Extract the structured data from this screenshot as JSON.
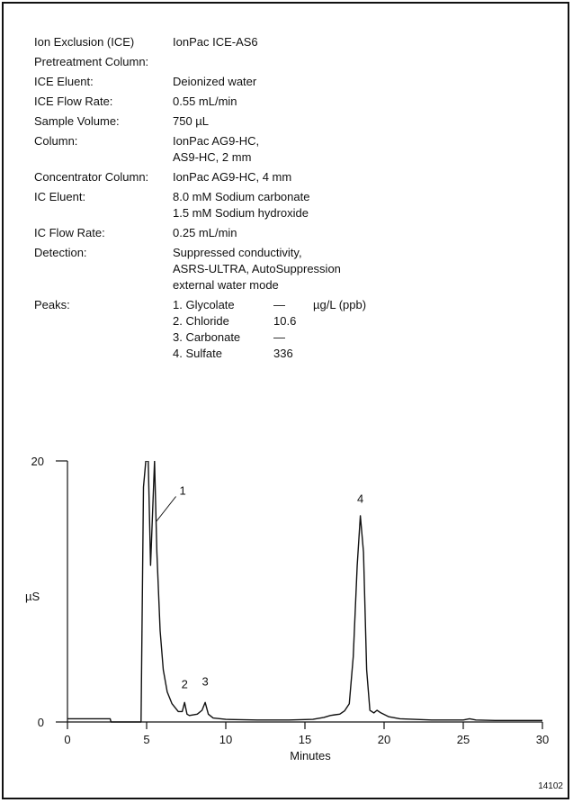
{
  "conditions": [
    {
      "label": "Ion Exclusion (ICE)",
      "value": [
        "IonPac ICE-AS6"
      ]
    },
    {
      "label": "Pretreatment Column:",
      "value": [
        ""
      ]
    },
    {
      "label": "ICE Eluent:",
      "value": [
        "Deionized water"
      ]
    },
    {
      "label": "ICE Flow Rate:",
      "value": [
        "0.55 mL/min"
      ]
    },
    {
      "label": "Sample Volume:",
      "value": [
        "750 µL"
      ]
    },
    {
      "label": "Column:",
      "value": [
        "IonPac AG9-HC,",
        "AS9-HC, 2 mm"
      ]
    },
    {
      "label": "Concentrator Column:",
      "value": [
        "IonPac AG9-HC, 4 mm"
      ]
    },
    {
      "label": "IC Eluent:",
      "value": [
        "8.0 mM Sodium carbonate",
        "1.5 mM Sodium hydroxide"
      ]
    },
    {
      "label": "IC Flow Rate:",
      "value": [
        "0.25 mL/min"
      ]
    },
    {
      "label": "Detection:",
      "value": [
        "Suppressed conductivity,",
        "ASRS-ULTRA, AutoSuppression",
        "external water mode"
      ]
    }
  ],
  "peaks_section": {
    "label": "Peaks:",
    "unit": "µg/L (ppb)",
    "items": [
      {
        "name": "1. Glycolate",
        "value": "—"
      },
      {
        "name": "2. Chloride",
        "value": "10.6"
      },
      {
        "name": "3. Carbonate",
        "value": "—"
      },
      {
        "name": "4. Sulfate",
        "value": "336"
      }
    ]
  },
  "figure_id": "14102",
  "chart_data": {
    "type": "line",
    "xlabel": "Minutes",
    "ylabel": "µS",
    "xlim": [
      0,
      30
    ],
    "ylim": [
      0,
      20
    ],
    "x_ticks": [
      0,
      5,
      10,
      15,
      20,
      25,
      30
    ],
    "y_ticks": [
      0,
      20
    ],
    "x": [
      0,
      2.7,
      2.75,
      4.65,
      4.8,
      4.95,
      5.1,
      5.25,
      5.5,
      5.65,
      5.85,
      6.05,
      6.3,
      6.6,
      7.0,
      7.25,
      7.4,
      7.55,
      7.7,
      8.2,
      8.5,
      8.7,
      8.9,
      9.2,
      10,
      12,
      14,
      15.5,
      16.2,
      16.6,
      16.9,
      17.2,
      17.5,
      17.8,
      18.05,
      18.3,
      18.5,
      18.7,
      18.9,
      19.1,
      19.35,
      19.55,
      19.8,
      20.3,
      21,
      23,
      25,
      25.4,
      25.8,
      27,
      30
    ],
    "y": [
      0.25,
      0.25,
      0,
      0,
      18,
      20,
      20,
      12,
      20,
      13,
      7,
      4,
      2.3,
      1.4,
      0.8,
      0.8,
      1.5,
      0.6,
      0.5,
      0.6,
      0.9,
      1.5,
      0.6,
      0.3,
      0.2,
      0.15,
      0.15,
      0.2,
      0.35,
      0.5,
      0.55,
      0.6,
      0.85,
      1.4,
      5,
      12,
      15.8,
      13,
      4,
      0.9,
      0.7,
      0.9,
      0.7,
      0.4,
      0.25,
      0.15,
      0.15,
      0.25,
      0.15,
      0.12,
      0.12
    ],
    "annotations": [
      {
        "label": "1",
        "x": 5.6,
        "y": 17.0
      },
      {
        "label": "2",
        "x": 7.4,
        "y": 2.6
      },
      {
        "label": "3",
        "x": 8.7,
        "y": 2.8
      },
      {
        "label": "4",
        "x": 18.5,
        "y": 16.8
      }
    ]
  }
}
